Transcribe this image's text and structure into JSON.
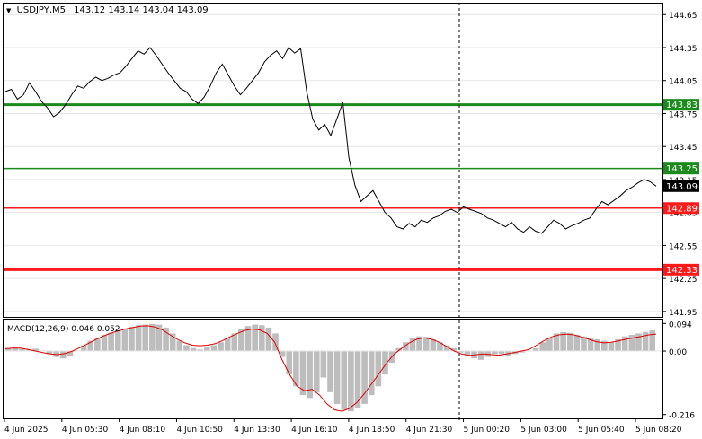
{
  "header": {
    "arrow": "▼",
    "symbol_tf": "USDJPY,M5",
    "ohlc": "143.12 143.14 143.04 143.09"
  },
  "macd_header": "MACD(12,26,9) 0.046 0.052",
  "colors": {
    "background": "#ffffff",
    "frame": "#000000",
    "grid": "#e6e6e6",
    "price_line": "#000000",
    "green_level": "#1a8a1a",
    "red_level": "#ff1a1a",
    "histogram": "#bdbdbd",
    "signal": "#e00000",
    "price_tag": "#000000"
  },
  "chart_data": [
    {
      "type": "line",
      "series": "USDJPY,M5",
      "ylim": [
        141.9,
        144.75
      ],
      "y_ticks": [
        "144.65",
        "144.35",
        "144.05",
        "143.75",
        "143.45",
        "143.15",
        "142.85",
        "142.55",
        "142.25",
        "141.95"
      ],
      "x_ticks": [
        "4 Jun 2025",
        "4 Jun 05:30",
        "4 Jun 08:10",
        "4 Jun 10:50",
        "4 Jun 13:30",
        "4 Jun 16:10",
        "4 Jun 18:50",
        "4 Jun 21:30",
        "5 Jun 00:20",
        "5 Jun 03:00",
        "5 Jun 05:40",
        "5 Jun 08:20"
      ],
      "levels": [
        {
          "label": "143.83",
          "value": 143.83,
          "color": "green",
          "thick": true
        },
        {
          "label": "143.25",
          "value": 143.25,
          "color": "green",
          "thick": false
        },
        {
          "label": "142.89",
          "value": 142.89,
          "color": "red",
          "thick": false
        },
        {
          "label": "142.33",
          "value": 142.33,
          "color": "red",
          "thick": true
        }
      ],
      "current_price": {
        "label": "143.09",
        "value": 143.09
      },
      "close": [
        143.95,
        143.97,
        143.88,
        143.92,
        144.03,
        143.95,
        143.86,
        143.8,
        143.72,
        143.76,
        143.83,
        143.92,
        144.0,
        143.98,
        144.04,
        144.08,
        144.05,
        144.07,
        144.1,
        144.12,
        144.18,
        144.25,
        144.32,
        144.29,
        144.35,
        144.28,
        144.2,
        144.12,
        144.05,
        143.98,
        143.95,
        143.88,
        143.84,
        143.9,
        144.0,
        144.12,
        144.2,
        144.1,
        144.0,
        143.92,
        143.98,
        144.05,
        144.12,
        144.22,
        144.28,
        144.32,
        144.25,
        144.35,
        144.3,
        144.34,
        143.95,
        143.7,
        143.6,
        143.65,
        143.55,
        143.7,
        143.85,
        143.35,
        143.1,
        142.95,
        143.0,
        143.05,
        142.95,
        142.85,
        142.8,
        142.72,
        142.7,
        142.75,
        142.72,
        142.78,
        142.76,
        142.8,
        142.82,
        142.86,
        142.88,
        142.85,
        142.9,
        142.88,
        142.86,
        142.84,
        142.8,
        142.78,
        142.75,
        142.72,
        142.76,
        142.7,
        142.67,
        142.72,
        142.68,
        142.66,
        142.72,
        142.78,
        142.75,
        142.7,
        142.73,
        142.75,
        142.78,
        142.8,
        142.88,
        142.95,
        142.92,
        142.96,
        143.0,
        143.05,
        143.08,
        143.12,
        143.15,
        143.13,
        143.09
      ],
      "macd_panel": {
        "ylim": [
          -0.226,
          0.104
        ],
        "y_ticks": [
          "0.094",
          "0.00",
          "-0.216"
        ],
        "histogram": [
          0.01,
          0.012,
          0.008,
          0.005,
          0.008,
          0.002,
          -0.01,
          -0.02,
          -0.025,
          -0.018,
          0.002,
          0.02,
          0.035,
          0.045,
          0.055,
          0.062,
          0.07,
          0.075,
          0.082,
          0.088,
          0.09,
          0.092,
          0.09,
          0.08,
          0.06,
          0.035,
          0.02,
          0.01,
          0.005,
          0.012,
          0.02,
          0.03,
          0.045,
          0.06,
          0.075,
          0.085,
          0.09,
          0.088,
          0.08,
          0.06,
          -0.02,
          -0.08,
          -0.12,
          -0.15,
          -0.16,
          -0.14,
          -0.09,
          -0.14,
          -0.18,
          -0.2,
          -0.205,
          -0.195,
          -0.18,
          -0.15,
          -0.12,
          -0.08,
          -0.04,
          0.01,
          0.03,
          0.045,
          0.05,
          0.048,
          0.04,
          0.03,
          0.02,
          0.01,
          -0.005,
          -0.015,
          -0.025,
          -0.03,
          -0.02,
          -0.01,
          -0.01,
          -0.015,
          -0.01,
          -0.005,
          0.0,
          0.01,
          0.03,
          0.045,
          0.06,
          0.065,
          0.062,
          0.055,
          0.05,
          0.045,
          0.04,
          0.035,
          0.03,
          0.04,
          0.05,
          0.055,
          0.06,
          0.065,
          0.07
        ],
        "signal": [
          0.008,
          0.01,
          0.01,
          0.006,
          0.0,
          -0.005,
          -0.01,
          -0.012,
          -0.008,
          0.0,
          0.012,
          0.025,
          0.038,
          0.05,
          0.06,
          0.068,
          0.075,
          0.08,
          0.085,
          0.086,
          0.082,
          0.072,
          0.055,
          0.04,
          0.028,
          0.02,
          0.018,
          0.02,
          0.025,
          0.035,
          0.048,
          0.06,
          0.07,
          0.075,
          0.072,
          0.06,
          0.03,
          -0.03,
          -0.08,
          -0.12,
          -0.135,
          -0.13,
          -0.15,
          -0.18,
          -0.2,
          -0.205,
          -0.195,
          -0.175,
          -0.145,
          -0.11,
          -0.075,
          -0.04,
          -0.01,
          0.01,
          0.028,
          0.04,
          0.045,
          0.04,
          0.03,
          0.015,
          0.0,
          -0.01,
          -0.015,
          -0.012,
          -0.01,
          -0.012,
          -0.014,
          -0.01,
          -0.005,
          0.0,
          0.005,
          0.02,
          0.035,
          0.048,
          0.055,
          0.058,
          0.055,
          0.048,
          0.04,
          0.032,
          0.028,
          0.03,
          0.035,
          0.04,
          0.045,
          0.05,
          0.055,
          0.058
        ]
      }
    }
  ]
}
